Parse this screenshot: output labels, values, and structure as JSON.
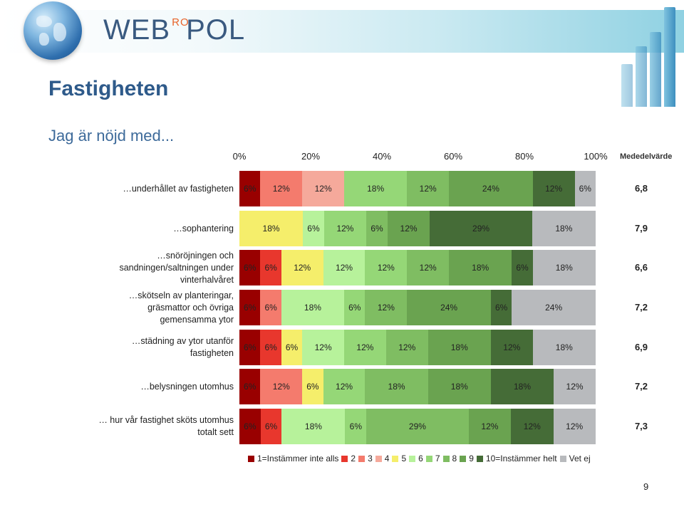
{
  "header": {
    "logo_left": "WEB",
    "logo_ro": "RO",
    "logo_right": "POL"
  },
  "slide": {
    "title": "Fastigheten",
    "subtitle": "Jag är nöjd med...",
    "page_number": "9"
  },
  "chart_data": {
    "type": "bar",
    "orientation": "horizontal",
    "stacked": true,
    "percent_scale": true,
    "x_ticks": [
      "0%",
      "20%",
      "40%",
      "60%",
      "80%",
      "100%"
    ],
    "xlim": [
      0,
      100
    ],
    "mean_header": "Mededelvärde",
    "categories": [
      "…underhållet av fastigheten",
      "…sophantering",
      "…snöröjningen och sandningen/saltningen under vinterhalvåret",
      "…skötseln av planteringar, gräsmattor och övriga gemensamma ytor",
      "…städning av ytor utanför fastigheten",
      "…belysningen utomhus",
      "… hur vår fastighet sköts utomhus totalt sett"
    ],
    "series": [
      {
        "name": "1=Instämmer inte alls",
        "color": "#990000",
        "values": [
          6,
          0,
          6,
          6,
          6,
          6,
          6
        ]
      },
      {
        "name": "2",
        "color": "#e8372d",
        "values": [
          0,
          0,
          6,
          0,
          6,
          0,
          6
        ]
      },
      {
        "name": "3",
        "color": "#f47b6d",
        "values": [
          12,
          0,
          0,
          6,
          0,
          12,
          0
        ]
      },
      {
        "name": "4",
        "color": "#f5a99b",
        "values": [
          12,
          0,
          0,
          0,
          0,
          0,
          0
        ]
      },
      {
        "name": "5",
        "color": "#f5ee6b",
        "values": [
          0,
          18,
          12,
          0,
          6,
          6,
          0
        ]
      },
      {
        "name": "6",
        "color": "#b7f29b",
        "values": [
          0,
          6,
          12,
          18,
          12,
          0,
          18
        ]
      },
      {
        "name": "7",
        "color": "#95d777",
        "values": [
          18,
          12,
          12,
          6,
          12,
          12,
          6
        ]
      },
      {
        "name": "8",
        "color": "#7fbd62",
        "values": [
          12,
          6,
          12,
          12,
          12,
          18,
          29
        ]
      },
      {
        "name": "9",
        "color": "#6aa350",
        "values": [
          24,
          12,
          18,
          24,
          18,
          18,
          12
        ]
      },
      {
        "name": "10=Instämmer helt",
        "color": "#456c37",
        "values": [
          12,
          29,
          6,
          6,
          12,
          18,
          12
        ]
      },
      {
        "name": "Vet ej",
        "color": "#b8babd",
        "values": [
          6,
          18,
          18,
          24,
          18,
          12,
          12
        ]
      }
    ],
    "segment_labels": [
      [
        "6%",
        "12%",
        "12%",
        "18%",
        "12%",
        "24%",
        "12%",
        "6%"
      ],
      [
        "18%",
        "6%",
        "12%",
        "6%",
        "12%",
        "29%",
        "18%"
      ],
      [
        "6%",
        "6%",
        "12%",
        "12%",
        "12%",
        "12%",
        "18%",
        "6%",
        "18%"
      ],
      [
        "6%",
        "6%",
        "18%",
        "6%",
        "12%",
        "24%",
        "6%",
        "24%"
      ],
      [
        "6%",
        "6%",
        "6%",
        "12%",
        "12%",
        "12%",
        "18%",
        "12%",
        "18%"
      ],
      [
        "6%",
        "12%",
        "6%",
        "12%",
        "18%",
        "18%",
        "18%",
        "12%"
      ],
      [
        "6%",
        "6%",
        "18%",
        "6%",
        "29%",
        "12%",
        "12%",
        "12%"
      ]
    ],
    "means": [
      "6,8",
      "7,9",
      "6,6",
      "7,2",
      "6,9",
      "7,2",
      "7,3"
    ],
    "legend_position": "bottom"
  }
}
